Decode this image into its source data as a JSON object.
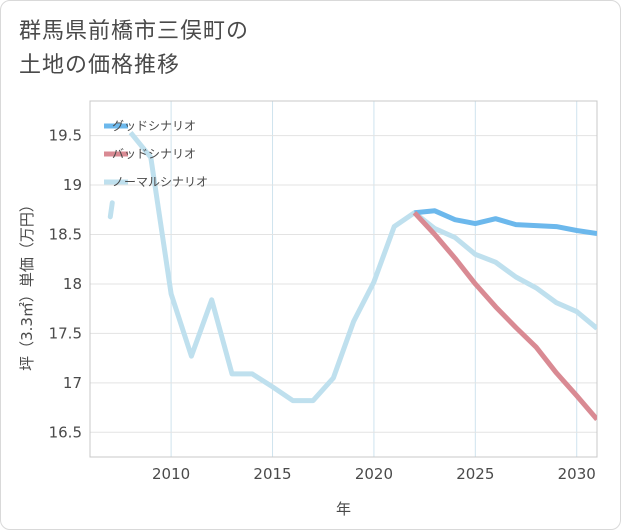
{
  "title_lines": [
    "群馬県前橋市三俣町の",
    "土地の価格推移"
  ],
  "chart_data": {
    "type": "line",
    "title": "群馬県前橋市三俣町の土地の価格推移",
    "xlabel": "年",
    "ylabel": "坪（3.3㎡）単価（万円）",
    "xlim": [
      2006,
      2031
    ],
    "ylim": [
      16.25,
      19.85
    ],
    "xticks": [
      2010,
      2015,
      2020,
      2025,
      2030
    ],
    "yticks": [
      16.5,
      17,
      17.5,
      18,
      18.5,
      19,
      19.5
    ],
    "grid": true,
    "legend_position": "top-left",
    "series": [
      {
        "name": "グッドシナリオ",
        "color": "#6cb8ec",
        "x": [
          2022,
          2023,
          2024,
          2025,
          2026,
          2027,
          2028,
          2029,
          2030,
          2031
        ],
        "values": [
          18.72,
          18.74,
          18.65,
          18.61,
          18.66,
          18.6,
          18.59,
          18.58,
          18.54,
          18.51
        ]
      },
      {
        "name": "バッドシナリオ",
        "color": "#d98a93",
        "x": [
          2022,
          2023,
          2024,
          2025,
          2026,
          2027,
          2028,
          2029,
          2030,
          2031
        ],
        "values": [
          18.72,
          18.5,
          18.26,
          18.0,
          17.77,
          17.56,
          17.36,
          17.1,
          16.87,
          16.63
        ]
      },
      {
        "name": "ノーマルシナリオ",
        "color": "#bfe0ee",
        "x": [
          2007,
          2008,
          2009,
          2010,
          2011,
          2012,
          2013,
          2014,
          2015,
          2016,
          2017,
          2018,
          2019,
          2020,
          2021,
          2022,
          2023,
          2024,
          2025,
          2026,
          2027,
          2028,
          2029,
          2030,
          2031
        ],
        "values": [
          18.78,
          19.53,
          19.28,
          17.9,
          17.27,
          17.84,
          17.09,
          17.09,
          16.96,
          16.82,
          16.82,
          17.05,
          17.62,
          18.02,
          18.58,
          18.72,
          18.56,
          18.47,
          18.3,
          18.22,
          18.07,
          17.96,
          17.81,
          17.72,
          17.55
        ]
      }
    ]
  }
}
